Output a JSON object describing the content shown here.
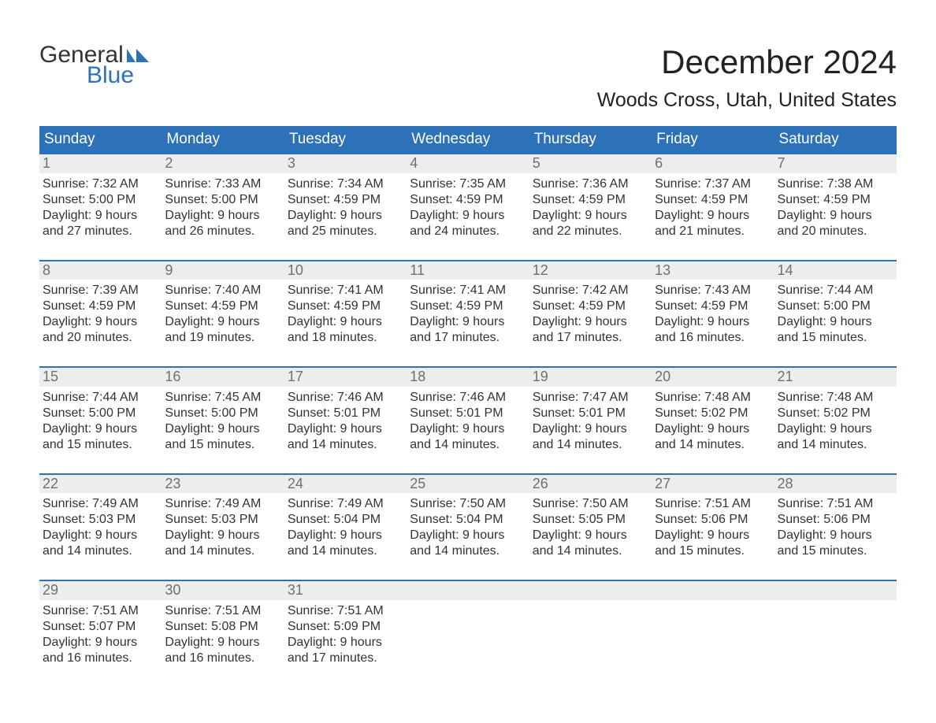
{
  "brand": {
    "line1": "General",
    "line2": "Blue"
  },
  "title": "December 2024",
  "subtitle": "Woods Cross, Utah, United States",
  "colors": {
    "brand_blue": "#2d72b8",
    "header_bg": "#2d72b8",
    "header_text": "#ffffff",
    "daynum_bg": "#eceded",
    "daynum_text": "#6f7072",
    "body_text": "#333333",
    "page_bg": "#ffffff",
    "week_top_border": "#2d72b8"
  },
  "typography": {
    "title_fontsize": 42,
    "subtitle_fontsize": 25,
    "header_fontsize": 19,
    "daynum_fontsize": 18,
    "body_fontsize": 16,
    "logo_fontsize": 30
  },
  "day_names": [
    "Sunday",
    "Monday",
    "Tuesday",
    "Wednesday",
    "Thursday",
    "Friday",
    "Saturday"
  ],
  "weeks": [
    [
      {
        "n": "1",
        "sunrise": "7:32 AM",
        "sunset": "5:00 PM",
        "daylight": "9 hours and 27 minutes."
      },
      {
        "n": "2",
        "sunrise": "7:33 AM",
        "sunset": "5:00 PM",
        "daylight": "9 hours and 26 minutes."
      },
      {
        "n": "3",
        "sunrise": "7:34 AM",
        "sunset": "4:59 PM",
        "daylight": "9 hours and 25 minutes."
      },
      {
        "n": "4",
        "sunrise": "7:35 AM",
        "sunset": "4:59 PM",
        "daylight": "9 hours and 24 minutes."
      },
      {
        "n": "5",
        "sunrise": "7:36 AM",
        "sunset": "4:59 PM",
        "daylight": "9 hours and 22 minutes."
      },
      {
        "n": "6",
        "sunrise": "7:37 AM",
        "sunset": "4:59 PM",
        "daylight": "9 hours and 21 minutes."
      },
      {
        "n": "7",
        "sunrise": "7:38 AM",
        "sunset": "4:59 PM",
        "daylight": "9 hours and 20 minutes."
      }
    ],
    [
      {
        "n": "8",
        "sunrise": "7:39 AM",
        "sunset": "4:59 PM",
        "daylight": "9 hours and 20 minutes."
      },
      {
        "n": "9",
        "sunrise": "7:40 AM",
        "sunset": "4:59 PM",
        "daylight": "9 hours and 19 minutes."
      },
      {
        "n": "10",
        "sunrise": "7:41 AM",
        "sunset": "4:59 PM",
        "daylight": "9 hours and 18 minutes."
      },
      {
        "n": "11",
        "sunrise": "7:41 AM",
        "sunset": "4:59 PM",
        "daylight": "9 hours and 17 minutes."
      },
      {
        "n": "12",
        "sunrise": "7:42 AM",
        "sunset": "4:59 PM",
        "daylight": "9 hours and 17 minutes."
      },
      {
        "n": "13",
        "sunrise": "7:43 AM",
        "sunset": "4:59 PM",
        "daylight": "9 hours and 16 minutes."
      },
      {
        "n": "14",
        "sunrise": "7:44 AM",
        "sunset": "5:00 PM",
        "daylight": "9 hours and 15 minutes."
      }
    ],
    [
      {
        "n": "15",
        "sunrise": "7:44 AM",
        "sunset": "5:00 PM",
        "daylight": "9 hours and 15 minutes."
      },
      {
        "n": "16",
        "sunrise": "7:45 AM",
        "sunset": "5:00 PM",
        "daylight": "9 hours and 15 minutes."
      },
      {
        "n": "17",
        "sunrise": "7:46 AM",
        "sunset": "5:01 PM",
        "daylight": "9 hours and 14 minutes."
      },
      {
        "n": "18",
        "sunrise": "7:46 AM",
        "sunset": "5:01 PM",
        "daylight": "9 hours and 14 minutes."
      },
      {
        "n": "19",
        "sunrise": "7:47 AM",
        "sunset": "5:01 PM",
        "daylight": "9 hours and 14 minutes."
      },
      {
        "n": "20",
        "sunrise": "7:48 AM",
        "sunset": "5:02 PM",
        "daylight": "9 hours and 14 minutes."
      },
      {
        "n": "21",
        "sunrise": "7:48 AM",
        "sunset": "5:02 PM",
        "daylight": "9 hours and 14 minutes."
      }
    ],
    [
      {
        "n": "22",
        "sunrise": "7:49 AM",
        "sunset": "5:03 PM",
        "daylight": "9 hours and 14 minutes."
      },
      {
        "n": "23",
        "sunrise": "7:49 AM",
        "sunset": "5:03 PM",
        "daylight": "9 hours and 14 minutes."
      },
      {
        "n": "24",
        "sunrise": "7:49 AM",
        "sunset": "5:04 PM",
        "daylight": "9 hours and 14 minutes."
      },
      {
        "n": "25",
        "sunrise": "7:50 AM",
        "sunset": "5:04 PM",
        "daylight": "9 hours and 14 minutes."
      },
      {
        "n": "26",
        "sunrise": "7:50 AM",
        "sunset": "5:05 PM",
        "daylight": "9 hours and 14 minutes."
      },
      {
        "n": "27",
        "sunrise": "7:51 AM",
        "sunset": "5:06 PM",
        "daylight": "9 hours and 15 minutes."
      },
      {
        "n": "28",
        "sunrise": "7:51 AM",
        "sunset": "5:06 PM",
        "daylight": "9 hours and 15 minutes."
      }
    ],
    [
      {
        "n": "29",
        "sunrise": "7:51 AM",
        "sunset": "5:07 PM",
        "daylight": "9 hours and 16 minutes."
      },
      {
        "n": "30",
        "sunrise": "7:51 AM",
        "sunset": "5:08 PM",
        "daylight": "9 hours and 16 minutes."
      },
      {
        "n": "31",
        "sunrise": "7:51 AM",
        "sunset": "5:09 PM",
        "daylight": "9 hours and 17 minutes."
      },
      null,
      null,
      null,
      null
    ]
  ],
  "labels": {
    "sunrise_prefix": "Sunrise: ",
    "sunset_prefix": "Sunset: ",
    "daylight_prefix": "Daylight: "
  }
}
